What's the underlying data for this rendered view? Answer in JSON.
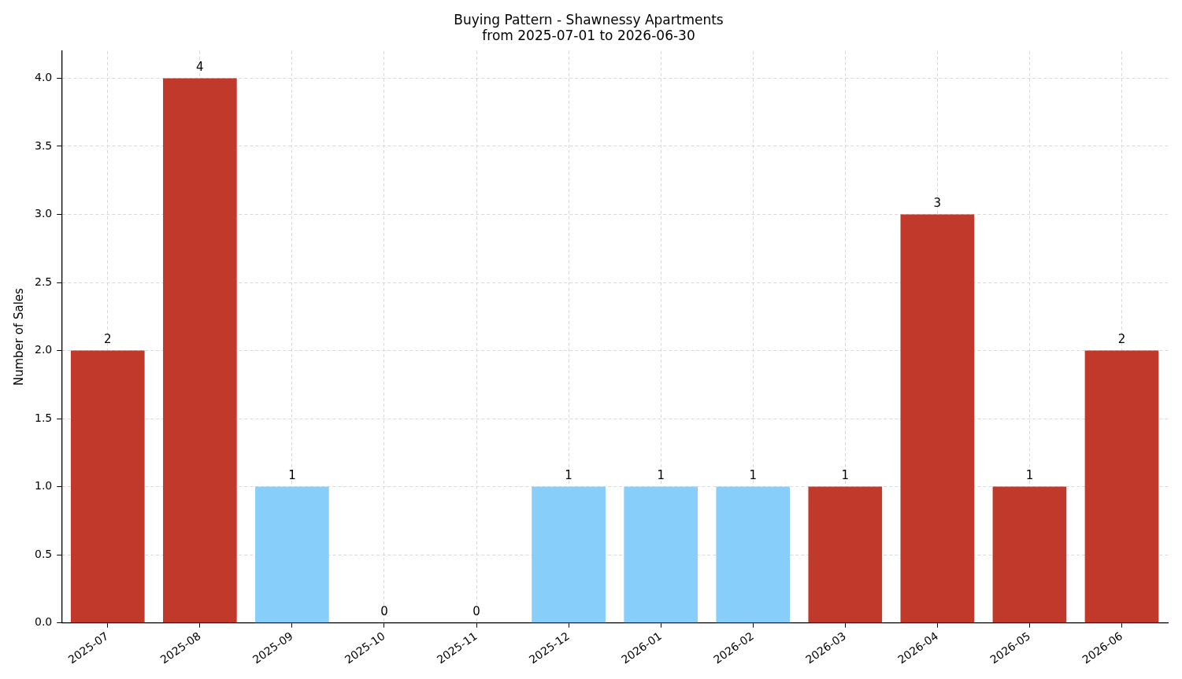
{
  "chart_data": {
    "type": "bar",
    "title": "Buying Pattern - Shawnessy Apartments\nfrom 2025-07-01 to 2026-06-30",
    "ylabel": "Number of Sales",
    "categories": [
      "2025-07",
      "2025-08",
      "2025-09",
      "2025-10",
      "2025-11",
      "2025-12",
      "2026-01",
      "2026-02",
      "2026-03",
      "2026-04",
      "2026-05",
      "2026-06"
    ],
    "values": [
      2,
      4,
      1,
      0,
      0,
      1,
      1,
      1,
      1,
      3,
      1,
      2
    ],
    "colors": [
      "#c0392b",
      "#c0392b",
      "#87cefa",
      "#c0392b",
      "#c0392b",
      "#87cefa",
      "#87cefa",
      "#87cefa",
      "#c0392b",
      "#c0392b",
      "#c0392b",
      "#c0392b"
    ],
    "ylim": [
      0,
      4.2
    ],
    "yticks": [
      {
        "value": 0,
        "label": "0.0"
      },
      {
        "value": 0.5,
        "label": "0.5"
      },
      {
        "value": 1,
        "label": "1.0"
      },
      {
        "value": 1.5,
        "label": "1.5"
      },
      {
        "value": 2,
        "label": "2.0"
      },
      {
        "value": 2.5,
        "label": "2.5"
      },
      {
        "value": 3,
        "label": "3.0"
      },
      {
        "value": 3.5,
        "label": "3.5"
      },
      {
        "value": 4,
        "label": "4.0"
      }
    ],
    "grid": true,
    "data_labels": true,
    "legend": false
  }
}
